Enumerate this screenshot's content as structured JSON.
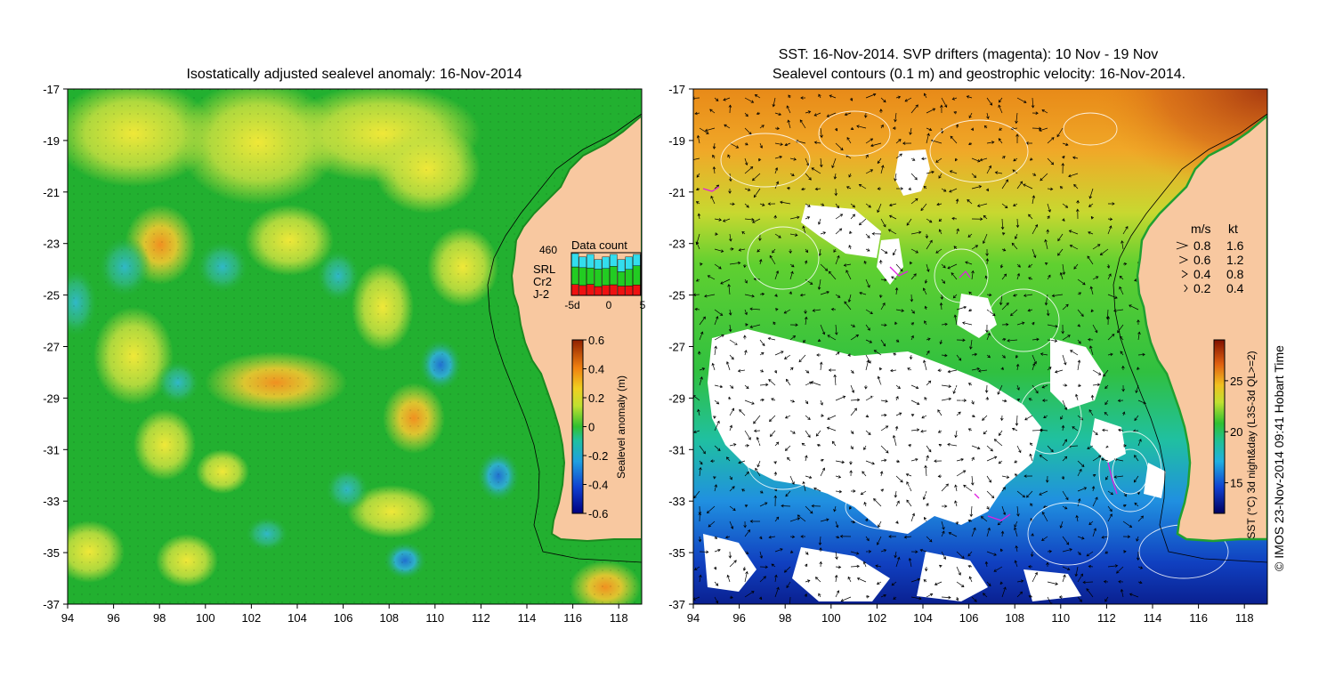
{
  "left_panel": {
    "title": "Isostatically adjusted sealevel anomaly: 16-Nov-2014",
    "colorbar": {
      "label": "Sealevel anomaly (m)",
      "ticks": [
        "0.6",
        "0.4",
        "0.2",
        "0",
        "-0.2",
        "-0.4",
        "-0.6"
      ],
      "range": [
        -0.6,
        0.6
      ]
    },
    "data_count": {
      "title": "Data count",
      "max_label": "460",
      "x_ticks": [
        "-5d",
        "0",
        "5"
      ],
      "legend": [
        {
          "label": "SRL",
          "color": "#33ddee"
        },
        {
          "label": "Cr2",
          "color": "#22cc22"
        },
        {
          "label": "J-2",
          "color": "#ee1111"
        }
      ],
      "bars": [
        {
          "srl": 0.32,
          "cr2": 0.42,
          "j2": 0.26
        },
        {
          "srl": 0.27,
          "cr2": 0.45,
          "j2": 0.25
        },
        {
          "srl": 0.33,
          "cr2": 0.4,
          "j2": 0.27
        },
        {
          "srl": 0.26,
          "cr2": 0.47,
          "j2": 0.24
        },
        {
          "srl": 0.3,
          "cr2": 0.44,
          "j2": 0.26
        },
        {
          "srl": 0.28,
          "cr2": 0.43,
          "j2": 0.25
        },
        {
          "srl": 0.34,
          "cr2": 0.4,
          "j2": 0.26
        },
        {
          "srl": 0.31,
          "cr2": 0.41,
          "j2": 0.24
        },
        {
          "srl": 0.25,
          "cr2": 0.42,
          "j2": 0.23
        }
      ]
    }
  },
  "right_panel": {
    "title_line1": "SST: 16-Nov-2014. SVP drifters (magenta): 10 Nov - 19 Nov",
    "title_line2": "Sealevel contours (0.1 m) and geostrophic velocity: 16-Nov-2014.",
    "colorbar": {
      "label": "SST (°C) 3d night&day (L3S-3d QL>=2)",
      "ticks": [
        "25",
        "20",
        "15"
      ],
      "range": [
        12,
        29
      ]
    },
    "velocity_legend": {
      "header_ms": "m/s",
      "header_kt": "kt",
      "rows": [
        {
          "ms": "0.8",
          "kt": "1.6"
        },
        {
          "ms": "0.6",
          "kt": "1.2"
        },
        {
          "ms": "0.4",
          "kt": "0.8"
        },
        {
          "ms": "0.2",
          "kt": "0.4"
        }
      ]
    }
  },
  "axes": {
    "x_ticks": [
      "94",
      "96",
      "98",
      "100",
      "102",
      "104",
      "106",
      "108",
      "110",
      "112",
      "114",
      "116",
      "118"
    ],
    "y_ticks": [
      "-17",
      "-19",
      "-21",
      "-23",
      "-25",
      "-27",
      "-29",
      "-31",
      "-33",
      "-35",
      "-37"
    ],
    "lon_range": [
      94,
      119
    ],
    "lat_range": [
      -37,
      -17
    ]
  },
  "copyright": "© IMOS 23-Nov-2014 09:41 Hobart Time",
  "colors": {
    "land": "#f8c8a0",
    "slev_green": "#22b030",
    "slev_yellow": "#e8e040",
    "sst_orange": "#f0a020",
    "sst_green": "#40d030",
    "sst_blue": "#1050c0",
    "cloud": "#ffffff"
  }
}
